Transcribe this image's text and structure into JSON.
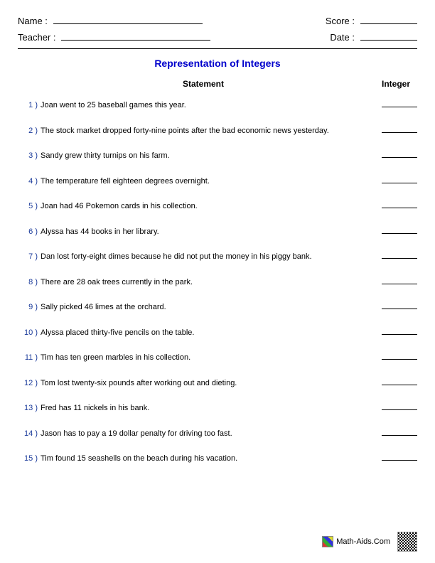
{
  "header": {
    "name_label": "Name :",
    "teacher_label": "Teacher :",
    "score_label": "Score :",
    "date_label": "Date :"
  },
  "title": {
    "text": "Representation of Integers",
    "color": "#0000cc"
  },
  "columns": {
    "statement": "Statement",
    "integer": "Integer"
  },
  "number_color": "#1a3a9a",
  "questions": [
    {
      "n": "1 )",
      "text": "Joan went to 25 baseball games this year."
    },
    {
      "n": "2 )",
      "text": "The stock market dropped forty-nine points after the bad economic news yesterday."
    },
    {
      "n": "3 )",
      "text": "Sandy grew thirty turnips on his farm."
    },
    {
      "n": "4 )",
      "text": "The temperature fell eighteen degrees overnight."
    },
    {
      "n": "5 )",
      "text": "Joan had 46 Pokemon cards in his collection."
    },
    {
      "n": "6 )",
      "text": "Alyssa has 44 books in her library."
    },
    {
      "n": "7 )",
      "text": "Dan lost forty-eight dimes because he did not put the money in his piggy bank."
    },
    {
      "n": "8 )",
      "text": "There are 28 oak trees currently in the park."
    },
    {
      "n": "9 )",
      "text": "Sally picked 46 limes at the orchard."
    },
    {
      "n": "10 )",
      "text": "Alyssa placed thirty-five pencils on the table."
    },
    {
      "n": "11 )",
      "text": "Tim has ten green marbles in his collection."
    },
    {
      "n": "12 )",
      "text": "Tom lost twenty-six pounds after working out and dieting."
    },
    {
      "n": "13 )",
      "text": "Fred has 11 nickels in his bank."
    },
    {
      "n": "14 )",
      "text": "Jason has to pay a 19 dollar penalty for driving too fast."
    },
    {
      "n": "15 )",
      "text": "Tim found 15 seashells on the beach during his vacation."
    }
  ],
  "footer": {
    "site": "Math-Aids.Com"
  }
}
